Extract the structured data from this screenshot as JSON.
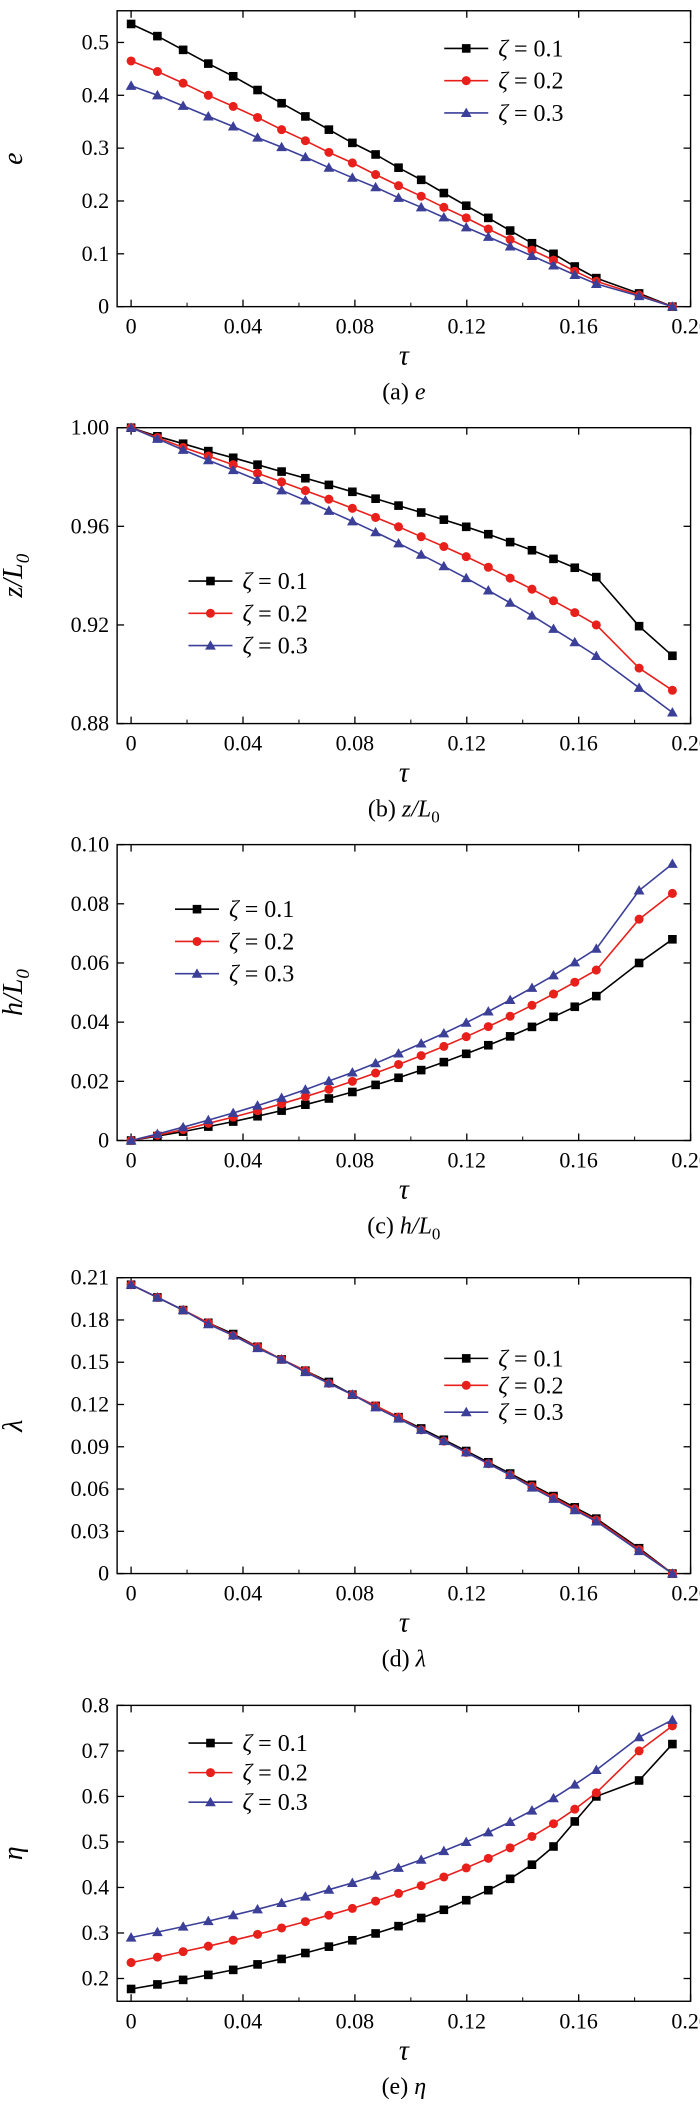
{
  "colors": {
    "s1": "#000000",
    "s2": "#e8201c",
    "s3": "#3b3f98"
  },
  "markers": [
    "square",
    "circle",
    "triangle"
  ],
  "chart_data": [
    {
      "type": "line",
      "caption": {
        "prefix": "(a) ",
        "var": "e",
        "sub": ""
      },
      "xlabel": "τ",
      "ylabel": {
        "var": "e",
        "sub": ""
      },
      "xlim": [
        -0.005,
        0.2
      ],
      "xticks": [
        0,
        0.04,
        0.08,
        0.12,
        0.16,
        0.2
      ],
      "xtick_labels": [
        "0",
        "0.04",
        "0.08",
        "0.12",
        "0.16",
        "0.20"
      ],
      "ylim": [
        0,
        0.56
      ],
      "yticks": [
        0,
        0.1,
        0.2,
        0.3,
        0.4,
        0.5
      ],
      "ytick_labels": [
        "0",
        "0.1",
        "0.2",
        "0.3",
        "0.4",
        "0.5"
      ],
      "legend_position": "top-right",
      "series": [
        {
          "name": "ζ = 0.1",
          "x": [
            0,
            0.0094,
            0.0186,
            0.0276,
            0.0365,
            0.0452,
            0.0538,
            0.0623,
            0.0707,
            0.0791,
            0.0874,
            0.0956,
            0.1037,
            0.1118,
            0.1198,
            0.1277,
            0.1355,
            0.1433,
            0.151,
            0.1586,
            0.1663,
            0.1816,
            0.1935
          ],
          "y": [
            0.535,
            0.512,
            0.486,
            0.46,
            0.436,
            0.41,
            0.385,
            0.36,
            0.335,
            0.31,
            0.288,
            0.263,
            0.24,
            0.215,
            0.191,
            0.168,
            0.144,
            0.12,
            0.1,
            0.076,
            0.054,
            0.025,
            0
          ]
        },
        {
          "name": "ζ = 0.2",
          "x": [
            0,
            0.0094,
            0.0186,
            0.0276,
            0.0365,
            0.0452,
            0.0538,
            0.0623,
            0.0707,
            0.0791,
            0.0874,
            0.0956,
            0.1037,
            0.1118,
            0.1198,
            0.1277,
            0.1355,
            0.1433,
            0.151,
            0.1586,
            0.1663,
            0.1816,
            0.1935
          ],
          "y": [
            0.465,
            0.445,
            0.423,
            0.4,
            0.379,
            0.358,
            0.335,
            0.314,
            0.292,
            0.272,
            0.25,
            0.229,
            0.209,
            0.188,
            0.168,
            0.147,
            0.127,
            0.107,
            0.088,
            0.067,
            0.048,
            0.022,
            0
          ]
        },
        {
          "name": "ζ = 0.3",
          "x": [
            0,
            0.0094,
            0.0186,
            0.0276,
            0.0365,
            0.0452,
            0.0538,
            0.0623,
            0.0707,
            0.0791,
            0.0874,
            0.0956,
            0.1037,
            0.1118,
            0.1198,
            0.1277,
            0.1355,
            0.1433,
            0.151,
            0.1586,
            0.1663,
            0.1816,
            0.1935
          ],
          "y": [
            0.418,
            0.4,
            0.38,
            0.36,
            0.341,
            0.32,
            0.302,
            0.283,
            0.263,
            0.244,
            0.226,
            0.206,
            0.188,
            0.169,
            0.15,
            0.132,
            0.114,
            0.096,
            0.078,
            0.06,
            0.043,
            0.02,
            0
          ]
        }
      ]
    },
    {
      "type": "line",
      "caption": {
        "prefix": "(b) ",
        "var": "z/L",
        "sub": "0"
      },
      "xlabel": "τ",
      "ylabel": {
        "var": "z/L",
        "sub": "0"
      },
      "xlim": [
        -0.005,
        0.2
      ],
      "xticks": [
        0,
        0.04,
        0.08,
        0.12,
        0.16,
        0.2
      ],
      "xtick_labels": [
        "0",
        "0.04",
        "0.08",
        "0.12",
        "0.16",
        "0.20"
      ],
      "ylim": [
        0.88,
        1.0
      ],
      "yticks": [
        0.88,
        0.92,
        0.96,
        1.0
      ],
      "ytick_labels": [
        "0.88",
        "0.92",
        "0.96",
        "1.00"
      ],
      "legend_position": "lower-left",
      "series": [
        {
          "name": "ζ = 0.1",
          "x": [
            0,
            0.0094,
            0.0186,
            0.0276,
            0.0365,
            0.0452,
            0.0538,
            0.0623,
            0.0707,
            0.0791,
            0.0874,
            0.0956,
            0.1037,
            0.1118,
            0.1198,
            0.1277,
            0.1355,
            0.1433,
            0.151,
            0.1586,
            0.1663,
            0.1816,
            0.1935
          ],
          "y": [
            1.0,
            0.9965,
            0.9935,
            0.9905,
            0.9878,
            0.985,
            0.9822,
            0.9795,
            0.9768,
            0.974,
            0.9712,
            0.9684,
            0.9656,
            0.9627,
            0.9598,
            0.9568,
            0.9536,
            0.9503,
            0.9468,
            0.9432,
            0.9394,
            0.9195,
            0.9075
          ]
        },
        {
          "name": "ζ = 0.2",
          "x": [
            0,
            0.0094,
            0.0186,
            0.0276,
            0.0365,
            0.0452,
            0.0538,
            0.0623,
            0.0707,
            0.0791,
            0.0874,
            0.0956,
            0.1037,
            0.1118,
            0.1198,
            0.1277,
            0.1355,
            0.1433,
            0.151,
            0.1586,
            0.1663,
            0.1816,
            0.1935
          ],
          "y": [
            1.0,
            0.996,
            0.992,
            0.9885,
            0.985,
            0.9815,
            0.978,
            0.9745,
            0.971,
            0.9673,
            0.9636,
            0.9598,
            0.9558,
            0.9518,
            0.9477,
            0.9434,
            0.939,
            0.9345,
            0.9298,
            0.925,
            0.92,
            0.9025,
            0.8935
          ]
        },
        {
          "name": "ζ = 0.3",
          "x": [
            0,
            0.0094,
            0.0186,
            0.0276,
            0.0365,
            0.0452,
            0.0538,
            0.0623,
            0.0707,
            0.0791,
            0.0874,
            0.0956,
            0.1037,
            0.1118,
            0.1198,
            0.1277,
            0.1355,
            0.1433,
            0.151,
            0.1586,
            0.1663,
            0.1816,
            0.1935
          ],
          "y": [
            1.0,
            0.9955,
            0.991,
            0.9868,
            0.9828,
            0.9788,
            0.9746,
            0.9705,
            0.9663,
            0.962,
            0.9576,
            0.9531,
            0.9485,
            0.9438,
            0.939,
            0.934,
            0.929,
            0.9238,
            0.9184,
            0.913,
            0.9074,
            0.8945,
            0.8845
          ]
        }
      ]
    },
    {
      "type": "line",
      "caption": {
        "prefix": "(c) ",
        "var": "h/L",
        "sub": "0"
      },
      "xlabel": "τ",
      "ylabel": {
        "var": "h/L",
        "sub": "0"
      },
      "xlim": [
        -0.005,
        0.2
      ],
      "xticks": [
        0,
        0.04,
        0.08,
        0.12,
        0.16,
        0.2
      ],
      "xtick_labels": [
        "0",
        "0.04",
        "0.08",
        "0.12",
        "0.16",
        "0.20"
      ],
      "ylim": [
        0,
        0.1
      ],
      "yticks": [
        0,
        0.02,
        0.04,
        0.06,
        0.08,
        0.1
      ],
      "ytick_labels": [
        "0",
        "0.02",
        "0.04",
        "0.06",
        "0.08",
        "0.10"
      ],
      "legend_position": "top-left",
      "series": [
        {
          "name": "ζ = 0.1",
          "x": [
            0,
            0.0094,
            0.0186,
            0.0276,
            0.0365,
            0.0452,
            0.0538,
            0.0623,
            0.0707,
            0.0791,
            0.0874,
            0.0956,
            0.1037,
            0.1118,
            0.1198,
            0.1277,
            0.1355,
            0.1433,
            0.151,
            0.1586,
            0.1663,
            0.1816,
            0.1935
          ],
          "y": [
            0,
            0.0015,
            0.003,
            0.0047,
            0.0064,
            0.0082,
            0.0101,
            0.0121,
            0.0142,
            0.0164,
            0.0188,
            0.0212,
            0.0238,
            0.0265,
            0.0293,
            0.0322,
            0.0352,
            0.0384,
            0.0418,
            0.0452,
            0.0488,
            0.06,
            0.068
          ]
        },
        {
          "name": "ζ = 0.2",
          "x": [
            0,
            0.0094,
            0.0186,
            0.0276,
            0.0365,
            0.0452,
            0.0538,
            0.0623,
            0.0707,
            0.0791,
            0.0874,
            0.0956,
            0.1037,
            0.1118,
            0.1198,
            0.1277,
            0.1355,
            0.1433,
            0.151,
            0.1586,
            0.1663,
            0.1816,
            0.1935
          ],
          "y": [
            0,
            0.0018,
            0.0037,
            0.0058,
            0.0079,
            0.0101,
            0.0124,
            0.0148,
            0.0173,
            0.02,
            0.0228,
            0.0257,
            0.0287,
            0.0318,
            0.0351,
            0.0385,
            0.042,
            0.0457,
            0.0495,
            0.0535,
            0.0576,
            0.0748,
            0.0835
          ]
        },
        {
          "name": "ζ = 0.3",
          "x": [
            0,
            0.0094,
            0.0186,
            0.0276,
            0.0365,
            0.0452,
            0.0538,
            0.0623,
            0.0707,
            0.0791,
            0.0874,
            0.0956,
            0.1037,
            0.1118,
            0.1198,
            0.1277,
            0.1355,
            0.1433,
            0.151,
            0.1586,
            0.1663,
            0.1816,
            0.1935
          ],
          "y": [
            0,
            0.0022,
            0.0045,
            0.0069,
            0.0093,
            0.0118,
            0.0144,
            0.0172,
            0.0201,
            0.023,
            0.0261,
            0.0294,
            0.0328,
            0.0362,
            0.0398,
            0.0436,
            0.0475,
            0.0516,
            0.0558,
            0.0602,
            0.0648,
            0.0845,
            0.0935
          ]
        }
      ]
    },
    {
      "type": "line",
      "caption": {
        "prefix": "(d) ",
        "var": "λ",
        "sub": ""
      },
      "xlabel": "τ",
      "ylabel": {
        "var": "λ",
        "sub": ""
      },
      "xlim": [
        -0.005,
        0.2
      ],
      "xticks": [
        0,
        0.04,
        0.08,
        0.12,
        0.16,
        0.2
      ],
      "xtick_labels": [
        "0",
        "0.04",
        "0.08",
        "0.12",
        "0.16",
        "0.20"
      ],
      "ylim": [
        0,
        0.21
      ],
      "yticks": [
        0,
        0.03,
        0.06,
        0.09,
        0.12,
        0.15,
        0.18,
        0.21
      ],
      "ytick_labels": [
        "0",
        "0.03",
        "0.06",
        "0.09",
        "0.12",
        "0.15",
        "0.18",
        "0.21"
      ],
      "legend_position": "top-right",
      "series": [
        {
          "name": "ζ = 0.1",
          "x": [
            0,
            0.0094,
            0.0186,
            0.0276,
            0.0365,
            0.0452,
            0.0538,
            0.0623,
            0.0707,
            0.0791,
            0.0874,
            0.0956,
            0.1037,
            0.1118,
            0.1198,
            0.1277,
            0.1355,
            0.1433,
            0.151,
            0.1586,
            0.1663,
            0.1816,
            0.1935
          ],
          "y": [
            0.205,
            0.196,
            0.187,
            0.178,
            0.17,
            0.161,
            0.152,
            0.144,
            0.136,
            0.127,
            0.119,
            0.111,
            0.103,
            0.095,
            0.087,
            0.079,
            0.071,
            0.063,
            0.055,
            0.047,
            0.039,
            0.018,
            0
          ]
        },
        {
          "name": "ζ = 0.2",
          "x": [
            0,
            0.0094,
            0.0186,
            0.0276,
            0.0365,
            0.0452,
            0.0538,
            0.0623,
            0.0707,
            0.0791,
            0.0874,
            0.0956,
            0.1037,
            0.1118,
            0.1198,
            0.1277,
            0.1355,
            0.1433,
            0.151,
            0.1586,
            0.1663,
            0.1816,
            0.1935
          ],
          "y": [
            0.205,
            0.196,
            0.187,
            0.178,
            0.169,
            0.161,
            0.152,
            0.144,
            0.135,
            0.127,
            0.119,
            0.111,
            0.102,
            0.094,
            0.086,
            0.078,
            0.07,
            0.062,
            0.054,
            0.046,
            0.038,
            0.017,
            0
          ]
        },
        {
          "name": "ζ = 0.3",
          "x": [
            0,
            0.0094,
            0.0186,
            0.0276,
            0.0365,
            0.0452,
            0.0538,
            0.0623,
            0.0707,
            0.0791,
            0.0874,
            0.0956,
            0.1037,
            0.1118,
            0.1198,
            0.1277,
            0.1355,
            0.1433,
            0.151,
            0.1586,
            0.1663,
            0.1816,
            0.1935
          ],
          "y": [
            0.205,
            0.196,
            0.187,
            0.177,
            0.169,
            0.16,
            0.152,
            0.143,
            0.135,
            0.127,
            0.118,
            0.11,
            0.102,
            0.094,
            0.086,
            0.078,
            0.07,
            0.061,
            0.053,
            0.045,
            0.037,
            0.016,
            0
          ]
        }
      ]
    },
    {
      "type": "line",
      "caption": {
        "prefix": "(e) ",
        "var": "η",
        "sub": ""
      },
      "xlabel": "τ",
      "ylabel": {
        "var": "η",
        "sub": ""
      },
      "xlim": [
        -0.005,
        0.2
      ],
      "xticks": [
        0,
        0.04,
        0.08,
        0.12,
        0.16,
        0.2
      ],
      "xtick_labels": [
        "0",
        "0.04",
        "0.08",
        "0.12",
        "0.16",
        "0.20"
      ],
      "ylim": [
        0.15,
        0.8
      ],
      "yticks": [
        0.2,
        0.3,
        0.4,
        0.5,
        0.6,
        0.7,
        0.8
      ],
      "ytick_labels": [
        "0.2",
        "0.3",
        "0.4",
        "0.5",
        "0.6",
        "0.7",
        "0.8"
      ],
      "legend_position": "top-left",
      "series": [
        {
          "name": "ζ = 0.1",
          "x": [
            0,
            0.0094,
            0.0186,
            0.0276,
            0.0365,
            0.0452,
            0.0538,
            0.0623,
            0.0707,
            0.0791,
            0.0874,
            0.0956,
            0.1037,
            0.1118,
            0.1198,
            0.1277,
            0.1355,
            0.1433,
            0.151,
            0.1586,
            0.1663,
            0.1816,
            0.1935
          ],
          "y": [
            0.177,
            0.187,
            0.197,
            0.208,
            0.219,
            0.231,
            0.243,
            0.256,
            0.27,
            0.284,
            0.299,
            0.315,
            0.333,
            0.351,
            0.372,
            0.394,
            0.419,
            0.45,
            0.49,
            0.545,
            0.6,
            0.635,
            0.715
          ]
        },
        {
          "name": "ζ = 0.2",
          "x": [
            0,
            0.0094,
            0.0186,
            0.0276,
            0.0365,
            0.0452,
            0.0538,
            0.0623,
            0.0707,
            0.0791,
            0.0874,
            0.0956,
            0.1037,
            0.1118,
            0.1198,
            0.1277,
            0.1355,
            0.1433,
            0.151,
            0.1586,
            0.1663,
            0.1816,
            0.1935
          ],
          "y": [
            0.235,
            0.247,
            0.259,
            0.271,
            0.284,
            0.297,
            0.311,
            0.325,
            0.339,
            0.354,
            0.37,
            0.387,
            0.404,
            0.423,
            0.443,
            0.464,
            0.487,
            0.512,
            0.54,
            0.572,
            0.608,
            0.7,
            0.755
          ]
        },
        {
          "name": "ζ = 0.3",
          "x": [
            0,
            0.0094,
            0.0186,
            0.0276,
            0.0365,
            0.0452,
            0.0538,
            0.0623,
            0.0707,
            0.0791,
            0.0874,
            0.0956,
            0.1037,
            0.1118,
            0.1198,
            0.1277,
            0.1355,
            0.1433,
            0.151,
            0.1586,
            0.1663,
            0.1816,
            0.1935
          ],
          "y": [
            0.29,
            0.302,
            0.314,
            0.326,
            0.339,
            0.352,
            0.366,
            0.38,
            0.395,
            0.41,
            0.426,
            0.443,
            0.461,
            0.48,
            0.5,
            0.521,
            0.544,
            0.569,
            0.596,
            0.626,
            0.658,
            0.73,
            0.768
          ]
        }
      ]
    }
  ]
}
